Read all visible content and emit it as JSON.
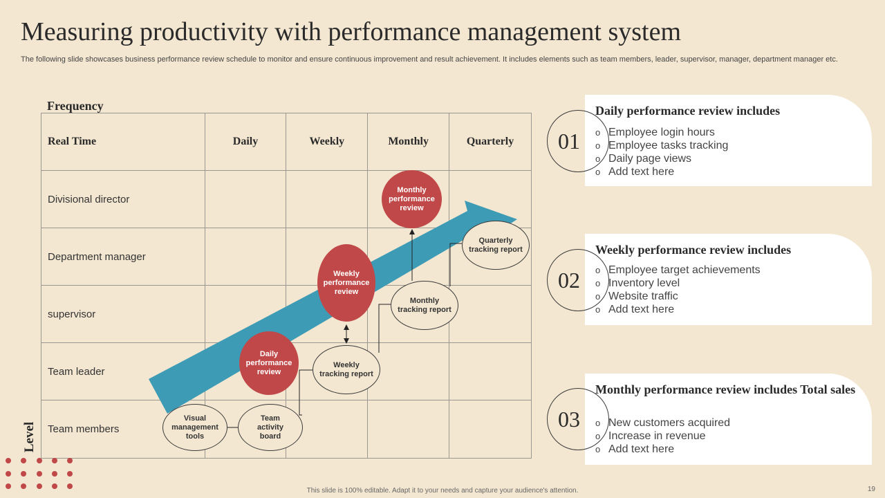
{
  "title": "Measuring productivity with performance management system",
  "subtitle": "The following slide showcases business performance review schedule to monitor and ensure continuous improvement and result achievement. It includes elements such as team members, leader, supervisor, manager, department manager etc.",
  "diagram": {
    "frequency_label": "Frequency",
    "level_label": "Level",
    "columns": [
      "Real Time",
      "Daily",
      "Weekly",
      "Monthly",
      "Quarterly"
    ],
    "rows": [
      "Divisional director",
      "Department manager",
      "supervisor",
      "Team leader",
      "Team members"
    ],
    "nodes": {
      "visual_tools": "Visual management tools",
      "activity_board": "Team activity board",
      "weekly_tracking": "Weekly tracking report",
      "monthly_tracking": "Monthly tracking report",
      "quarterly_tracking": "Quarterly tracking report",
      "daily_review": "Daily performance review",
      "weekly_review": "Weekly performance review",
      "monthly_review": "Monthly performance review"
    },
    "colors": {
      "arrow": "#3e9bb5",
      "review": "#c14848",
      "background": "#f3e7d1"
    }
  },
  "cards": [
    {
      "number": "01",
      "title": "Daily performance review includes",
      "items": [
        "Employee login hours",
        "Employee tasks tracking",
        "Daily page views",
        "Add text here"
      ]
    },
    {
      "number": "02",
      "title": "Weekly performance review includes",
      "items": [
        "Employee target achievements",
        "Inventory  level",
        "Website traffic",
        "Add text here"
      ]
    },
    {
      "number": "03",
      "title": "Monthly performance review includes Total sales",
      "items": [
        "New customers acquired",
        "Increase in revenue",
        "Add text here"
      ]
    }
  ],
  "footer": "This slide is 100% editable.  Adapt it to your needs and capture your audience's attention.",
  "page_number": "19"
}
